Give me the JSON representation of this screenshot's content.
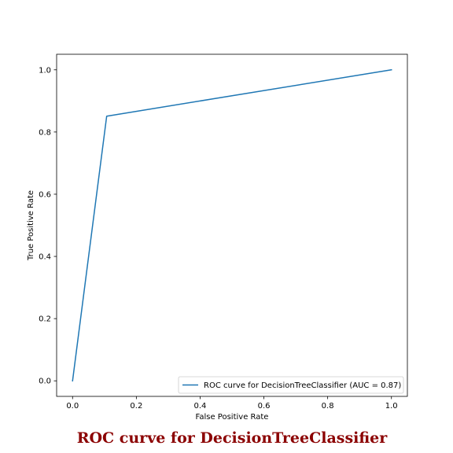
{
  "chart_data": {
    "type": "line",
    "title": "ROC curve for DecisionTreeClassifier",
    "xlabel": "False Positive Rate",
    "ylabel": "True Positive Rate",
    "xlim": [
      -0.05,
      1.05
    ],
    "ylim": [
      -0.05,
      1.05
    ],
    "xticks": [
      0.0,
      0.2,
      0.4,
      0.6,
      0.8,
      1.0
    ],
    "yticks": [
      0.0,
      0.2,
      0.4,
      0.6,
      0.8,
      1.0
    ],
    "xtick_labels": [
      "0.0",
      "0.2",
      "0.4",
      "0.6",
      "0.8",
      "1.0"
    ],
    "ytick_labels": [
      "0.0",
      "0.2",
      "0.4",
      "0.6",
      "0.8",
      "1.0"
    ],
    "grid": false,
    "legend_position": "bottom-right",
    "series": [
      {
        "name": "ROC curve for DecisionTreeClassifier (AUC = 0.87)",
        "color": "#1f77b4",
        "x": [
          0.0,
          0.107,
          1.0
        ],
        "y": [
          0.0,
          0.851,
          1.0
        ]
      }
    ],
    "title_color": "#8b0000"
  }
}
